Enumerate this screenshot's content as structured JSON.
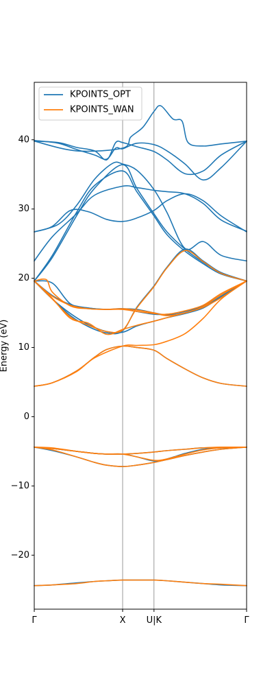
{
  "chart_data": {
    "type": "line",
    "title": "",
    "xlabel": "",
    "ylabel": "Energy (eV)",
    "ylim": [
      -27.8,
      48.3
    ],
    "xlim": [
      0,
      3.52
    ],
    "yticks": [
      -20,
      -10,
      0,
      10,
      20,
      30,
      40
    ],
    "ytick_labels": [
      "−20",
      "−10",
      "0",
      "10",
      "20",
      "30",
      "40"
    ],
    "xticks": [
      0,
      1.465,
      1.985,
      3.52
    ],
    "xtick_labels": [
      "Γ",
      "X",
      "U|K",
      "Γ"
    ],
    "vlines": [
      1.465,
      1.985
    ],
    "legend": {
      "position": "upper-left"
    },
    "colors": {
      "KPOINTS_OPT": "#1f77b4",
      "KPOINTS_WAN": "#ff7f0e",
      "vline": "#808080"
    },
    "series": [
      {
        "name": "KPOINTS_OPT",
        "bands": [
          {
            "x": [
              0,
              0.3,
              0.7,
              1.0,
              1.2,
              1.465,
              1.7,
              1.985,
              2.2,
              2.5,
              2.8,
              3.1,
              3.52
            ],
            "y": [
              -24.4,
              -24.3,
              -24.0,
              -23.8,
              -23.7,
              -23.6,
              -23.6,
              -23.6,
              -23.7,
              -23.9,
              -24.1,
              -24.3,
              -24.4
            ]
          },
          {
            "x": [
              0,
              0.3,
              0.7,
              1.0,
              1.2,
              1.465,
              1.7,
              1.985,
              2.2,
              2.5,
              2.8,
              3.1,
              3.52
            ],
            "y": [
              -4.4,
              -4.9,
              -5.8,
              -6.6,
              -7.0,
              -7.2,
              -7.0,
              -6.6,
              -6.2,
              -5.6,
              -5.1,
              -4.7,
              -4.4
            ]
          },
          {
            "x": [
              0,
              0.3,
              0.7,
              1.0,
              1.2,
              1.465,
              1.7,
              1.985,
              2.2,
              2.5,
              2.8,
              3.1,
              3.52
            ],
            "y": [
              -4.4,
              -4.6,
              -5.0,
              -5.3,
              -5.4,
              -5.4,
              -5.3,
              -5.1,
              -4.9,
              -4.7,
              -4.5,
              -4.5,
              -4.4
            ]
          },
          {
            "x": [
              0,
              0.3,
              0.7,
              1.0,
              1.2,
              1.465,
              1.7,
              1.985,
              2.2,
              2.5,
              2.8,
              3.1,
              3.52
            ],
            "y": [
              -4.4,
              -4.6,
              -5.0,
              -5.3,
              -5.4,
              -5.4,
              -5.8,
              -6.4,
              -6.1,
              -5.3,
              -4.7,
              -4.5,
              -4.4
            ]
          },
          {
            "x": [
              0,
              0.3,
              0.7,
              1.0,
              1.2,
              1.465,
              1.7,
              1.985,
              2.2,
              2.5,
              2.8,
              3.1,
              3.52
            ],
            "y": [
              4.4,
              4.9,
              6.6,
              8.6,
              9.7,
              10.2,
              10.0,
              9.6,
              8.4,
              6.9,
              5.6,
              4.8,
              4.4
            ]
          },
          {
            "x": [
              0,
              0.3,
              0.6,
              0.9,
              1.2,
              1.465,
              1.7,
              1.985,
              2.2,
              2.5,
              2.8,
              3.1,
              3.52
            ],
            "y": [
              19.6,
              17.0,
              14.9,
              13.3,
              12.3,
              12.2,
              13.1,
              13.8,
              14.3,
              14.9,
              15.7,
              17.3,
              19.6
            ]
          },
          {
            "x": [
              0,
              0.3,
              0.6,
              0.9,
              1.2,
              1.465,
              1.7,
              1.985,
              2.2,
              2.5,
              2.8,
              3.1,
              3.52
            ],
            "y": [
              19.6,
              17.5,
              16.2,
              15.7,
              15.5,
              15.6,
              15.2,
              14.8,
              14.8,
              15.2,
              16.0,
              17.6,
              19.6
            ]
          },
          {
            "x": [
              0,
              0.3,
              0.6,
              0.9,
              1.2,
              1.465,
              1.7,
              1.985,
              2.2,
              2.5,
              2.8,
              3.1,
              3.52
            ],
            "y": [
              19.6,
              17.0,
              14.6,
              13.0,
              12.1,
              12.4,
              15.8,
              18.9,
              21.6,
              24.2,
              22.5,
              20.8,
              19.6
            ]
          },
          {
            "x": [
              0,
              0.3,
              0.6,
              0.9,
              1.2,
              1.465,
              1.7,
              1.985,
              2.2,
              2.5,
              2.8,
              3.1,
              3.52
            ],
            "y": [
              19.6,
              19.3,
              16.3,
              15.7,
              15.5,
              15.6,
              15.5,
              15.0,
              14.7,
              15.0,
              15.8,
              17.4,
              19.6
            ]
          },
          {
            "x": [
              0,
              0.3,
              0.7,
              1.0,
              1.465,
              1.7,
              1.985,
              2.2,
              2.5,
              2.8,
              3.1,
              3.52
            ],
            "y": [
              19.6,
              23.0,
              29.0,
              33.0,
              36.4,
              33.0,
              29.3,
              26.7,
              24.2,
              22.3,
              20.8,
              19.6
            ]
          },
          {
            "x": [
              0,
              0.3,
              0.7,
              1.0,
              1.465,
              1.7,
              1.985,
              2.2,
              2.5,
              2.8,
              3.1,
              3.52
            ],
            "y": [
              19.6,
              23.3,
              29.5,
              33.4,
              35.5,
              32.5,
              29.0,
              26.3,
              23.9,
              22.1,
              20.6,
              19.6
            ]
          },
          {
            "x": [
              0,
              0.3,
              0.7,
              1.0,
              1.465,
              1.7,
              1.985,
              2.2,
              2.5,
              2.8,
              3.1,
              3.52
            ],
            "y": [
              22.5,
              26.0,
              29.3,
              32.0,
              33.3,
              33.1,
              32.7,
              32.5,
              32.2,
              30.8,
              28.4,
              26.8
            ]
          },
          {
            "x": [
              0,
              0.3,
              0.6,
              0.9,
              1.2,
              1.465,
              1.7,
              1.985,
              2.2,
              2.5,
              2.8,
              3.1,
              3.52
            ],
            "y": [
              26.7,
              27.5,
              29.8,
              29.6,
              28.5,
              28.2,
              28.7,
              29.8,
              31.2,
              32.2,
              31.2,
              29.0,
              26.7
            ]
          },
          {
            "x": [
              0,
              0.4,
              0.7,
              1.0,
              1.3,
              1.465,
              1.7,
              1.985,
              2.2,
              2.5,
              2.8,
              3.1,
              3.52
            ],
            "y": [
              26.7,
              27.8,
              30.5,
              34.3,
              36.6,
              36.5,
              35.6,
              32.8,
              29.5,
              24.3,
              25.3,
              23.3,
              22.5
            ]
          },
          {
            "x": [
              0,
              0.4,
              0.7,
              1.0,
              1.2,
              1.35,
              1.465,
              1.7,
              1.985,
              2.2,
              2.5,
              2.8,
              3.1,
              3.52
            ],
            "y": [
              39.9,
              39.5,
              38.6,
              37.8,
              37.2,
              38.8,
              38.7,
              39.5,
              39.3,
              38.4,
              36.5,
              34.2,
              36.0,
              39.8
            ]
          },
          {
            "x": [
              0,
              0.4,
              0.7,
              1.0,
              1.2,
              1.35,
              1.465,
              1.7,
              1.985,
              2.2,
              2.5,
              2.8,
              3.1,
              3.52
            ],
            "y": [
              39.8,
              39.6,
              38.9,
              38.4,
              37.1,
              39.6,
              39.6,
              39.0,
              38.3,
              37.1,
              35.1,
              35.5,
              37.8,
              39.8
            ]
          },
          {
            "x": [
              0,
              0.7,
              1.465,
              1.6,
              1.8,
              1.985,
              2.1,
              2.3,
              2.45,
              2.55,
              2.8,
              3.1,
              3.52
            ],
            "y": [
              39.8,
              38.4,
              38.8,
              40.4,
              41.8,
              44.1,
              44.9,
              43.0,
              42.7,
              39.6,
              39.1,
              39.4,
              39.8
            ]
          }
        ]
      },
      {
        "name": "KPOINTS_WAN",
        "bands": [
          {
            "x": [
              0,
              0.3,
              0.7,
              1.0,
              1.2,
              1.465,
              1.7,
              1.985,
              2.2,
              2.5,
              2.8,
              3.1,
              3.52
            ],
            "y": [
              -24.4,
              -24.3,
              -24.1,
              -23.8,
              -23.7,
              -23.6,
              -23.6,
              -23.6,
              -23.7,
              -23.9,
              -24.1,
              -24.2,
              -24.4
            ]
          },
          {
            "x": [
              0,
              0.3,
              0.7,
              1.0,
              1.2,
              1.465,
              1.7,
              1.985,
              2.2,
              2.5,
              2.8,
              3.1,
              3.52
            ],
            "y": [
              -4.4,
              -4.8,
              -5.8,
              -6.6,
              -7.0,
              -7.2,
              -7.0,
              -6.6,
              -6.2,
              -5.6,
              -5.1,
              -4.7,
              -4.4
            ]
          },
          {
            "x": [
              0,
              0.3,
              0.7,
              1.0,
              1.2,
              1.465,
              1.7,
              1.985,
              2.2,
              2.5,
              2.8,
              3.1,
              3.52
            ],
            "y": [
              -4.4,
              -4.5,
              -5.0,
              -5.3,
              -5.4,
              -5.4,
              -5.3,
              -5.1,
              -4.9,
              -4.7,
              -4.5,
              -4.4,
              -4.4
            ]
          },
          {
            "x": [
              0,
              0.3,
              0.7,
              1.0,
              1.2,
              1.465,
              1.7,
              1.985,
              2.2,
              2.5,
              2.8,
              3.1,
              3.52
            ],
            "y": [
              -4.4,
              -4.6,
              -5.0,
              -5.3,
              -5.4,
              -5.4,
              -5.8,
              -6.3,
              -6.1,
              -5.4,
              -4.8,
              -4.5,
              -4.4
            ]
          },
          {
            "x": [
              0,
              0.3,
              0.7,
              1.0,
              1.2,
              1.465,
              1.7,
              1.985,
              2.2,
              2.5,
              2.8,
              3.1,
              3.52
            ],
            "y": [
              4.4,
              4.9,
              6.6,
              8.6,
              9.7,
              10.2,
              10.0,
              9.6,
              8.4,
              6.9,
              5.6,
              4.8,
              4.4
            ]
          },
          {
            "x": [
              0,
              0.3,
              0.6,
              0.9,
              1.2,
              1.465,
              1.7,
              1.985,
              2.2,
              2.5,
              2.8,
              3.1,
              3.52
            ],
            "y": [
              19.6,
              17.1,
              14.2,
              13.5,
              11.9,
              12.6,
              13.2,
              13.8,
              14.3,
              15.0,
              15.8,
              17.2,
              19.6
            ]
          },
          {
            "x": [
              0,
              0.3,
              0.6,
              0.9,
              1.2,
              1.465,
              1.7,
              1.985,
              2.2,
              2.5,
              2.8,
              3.1,
              3.52
            ],
            "y": [
              19.6,
              17.4,
              16.1,
              15.6,
              15.5,
              15.5,
              15.2,
              14.9,
              14.8,
              15.3,
              16.1,
              17.8,
              19.6
            ]
          },
          {
            "x": [
              0,
              0.3,
              0.6,
              0.9,
              1.2,
              1.465,
              1.7,
              1.985,
              2.2,
              2.5,
              2.8,
              3.1,
              3.52
            ],
            "y": [
              19.6,
              17.0,
              14.4,
              13.2,
              12.3,
              12.5,
              15.7,
              18.8,
              21.5,
              24.0,
              22.4,
              20.7,
              19.6
            ]
          },
          {
            "x": [
              0,
              0.2,
              0.3,
              0.6,
              0.9,
              1.2,
              1.465,
              1.7,
              1.985,
              2.2,
              2.5,
              2.8,
              3.1,
              3.52
            ],
            "y": [
              19.6,
              19.8,
              18.0,
              16.0,
              15.6,
              15.5,
              15.6,
              15.4,
              15.0,
              14.6,
              15.0,
              15.9,
              17.6,
              19.6
            ]
          },
          {
            "x": [
              0,
              0.3,
              0.7,
              1.0,
              1.465,
              1.7,
              1.985,
              2.2,
              2.5,
              2.8,
              3.1,
              3.52
            ],
            "y": [
              4.4,
              4.9,
              6.5,
              8.5,
              10.2,
              10.3,
              10.4,
              10.9,
              12.0,
              14.2,
              17.0,
              19.6
            ]
          }
        ]
      }
    ]
  }
}
